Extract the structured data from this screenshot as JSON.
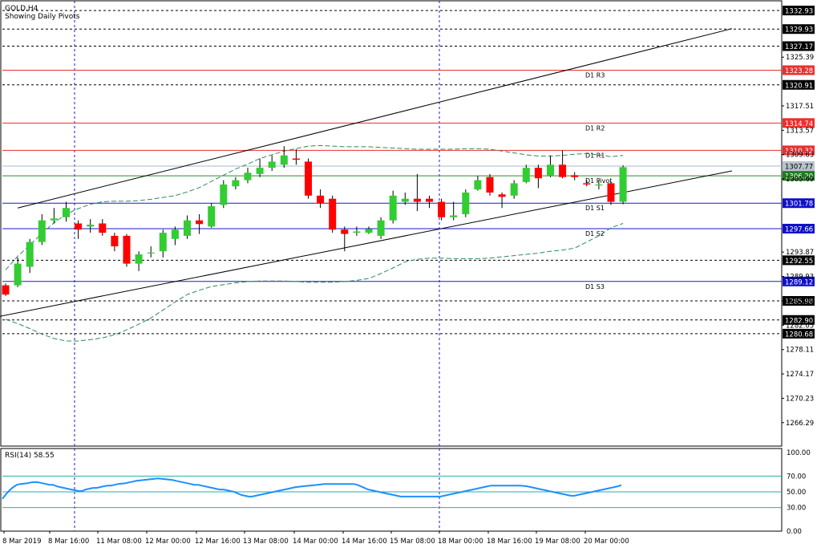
{
  "header": {
    "symbol": "GOLD,H4",
    "subtitle": "Showing Daily Pivots"
  },
  "rsi": {
    "label": "RSI(14) 58.55"
  },
  "colors": {
    "bull": "#32cd32",
    "bear": "#ff0000",
    "pivot_line": "#2e8b2e",
    "resistance": "#e8312f",
    "support": "#1a1acd",
    "rsi_line": "#1e90ff",
    "rsi_level": "#20b2aa",
    "trend": "#000000",
    "envelope": "#2e8b57"
  },
  "chart_data": [
    {
      "type": "candlestick",
      "title": "GOLD,H4",
      "subtitle": "Showing Daily Pivots",
      "ylim": [
        1262.5,
        1334.5
      ],
      "y_ticks": [
        1325.39,
        1317.51,
        1313.57,
        1309.63,
        1305.69,
        1293.87,
        1289.93,
        1285.99,
        1282.05,
        1278.11,
        1274.17,
        1270.23,
        1266.29
      ],
      "x_ticks": [
        "8 Mar 2019",
        "8 Mar 16:00",
        "11 Mar 08:00",
        "12 Mar 00:00",
        "12 Mar 16:00",
        "13 Mar 08:00",
        "14 Mar 00:00",
        "14 Mar 16:00",
        "15 Mar 08:00",
        "18 Mar 00:00",
        "18 Mar 16:00",
        "19 Mar 08:00",
        "20 Mar 00:00"
      ],
      "pivots": [
        {
          "name": "D1 R3",
          "value": 1323.28,
          "kind": "resistance"
        },
        {
          "name": "D1 R2",
          "value": 1314.74,
          "kind": "resistance"
        },
        {
          "name": "D1 R1",
          "value": 1310.32,
          "kind": "resistance"
        },
        {
          "name": "D1 Pivot",
          "value": 1306.2,
          "kind": "pivot"
        },
        {
          "name": "D1 S1",
          "value": 1301.78,
          "kind": "support"
        },
        {
          "name": "D1 S2",
          "value": 1297.66,
          "kind": "support"
        },
        {
          "name": "D1 S3",
          "value": 1289.12,
          "kind": "support"
        }
      ],
      "levels": [
        1332.93,
        1329.93,
        1327.17,
        1320.91,
        1292.55,
        1285.98,
        1282.9,
        1280.68
      ],
      "price_tags": [
        {
          "label": "1332.93",
          "value": 1332.93,
          "kind": "level"
        },
        {
          "label": "1329.93",
          "value": 1329.93,
          "kind": "level"
        },
        {
          "label": "1327.17",
          "value": 1327.17,
          "kind": "level"
        },
        {
          "label": "1323.28",
          "value": 1323.28,
          "kind": "resistance"
        },
        {
          "label": "1320.91",
          "value": 1320.91,
          "kind": "level"
        },
        {
          "label": "1314.74",
          "value": 1314.74,
          "kind": "resistance"
        },
        {
          "label": "1310.32",
          "value": 1310.32,
          "kind": "resistance"
        },
        {
          "label": "1307.77",
          "value": 1307.77,
          "kind": "current"
        },
        {
          "label": "1306.20",
          "value": 1306.2,
          "kind": "pivot"
        },
        {
          "label": "1301.78",
          "value": 1301.78,
          "kind": "support"
        },
        {
          "label": "1297.66",
          "value": 1297.66,
          "kind": "support"
        },
        {
          "label": "1292.55",
          "value": 1292.55,
          "kind": "level"
        },
        {
          "label": "1289.12",
          "value": 1289.12,
          "kind": "support"
        },
        {
          "label": "1285.98",
          "value": 1285.98,
          "kind": "level"
        },
        {
          "label": "1282.90",
          "value": 1282.9,
          "kind": "level"
        },
        {
          "label": "1280.68",
          "value": 1280.68,
          "kind": "level"
        }
      ],
      "trend_lines": [
        {
          "name": "upper channel",
          "points": [
            [
              1,
              1301.0
            ],
            [
              60,
              1330.0
            ]
          ]
        },
        {
          "name": "lower channel",
          "points": [
            [
              -3,
              1282.5
            ],
            [
              60,
              1307.0
            ]
          ]
        }
      ],
      "candles": [
        [
          1288.5,
          1287.0,
          1288.8,
          1286.8
        ],
        [
          1288.5,
          1292.0,
          1293.0,
          1288.2
        ],
        [
          1291.5,
          1295.5,
          1296.0,
          1290.5
        ],
        [
          1295.5,
          1299.0,
          1300.0,
          1295.0
        ],
        [
          1299.0,
          1299.3,
          1301.0,
          1298.5
        ],
        [
          1299.5,
          1301.0,
          1302.0,
          1298.8
        ],
        [
          1298.5,
          1297.5,
          1299.0,
          1296.0
        ],
        [
          1298.0,
          1298.3,
          1299.2,
          1297.0
        ],
        [
          1298.5,
          1297.0,
          1299.2,
          1296.5
        ],
        [
          1296.5,
          1294.8,
          1297.0,
          1294.0
        ],
        [
          1296.5,
          1292.0,
          1296.8,
          1291.5
        ],
        [
          1292.0,
          1293.5,
          1294.0,
          1290.8
        ],
        [
          1293.8,
          1293.8,
          1294.8,
          1293.0
        ],
        [
          1294.0,
          1297.0,
          1297.5,
          1293.0
        ],
        [
          1296.0,
          1297.5,
          1298.0,
          1295.0
        ],
        [
          1296.5,
          1299.0,
          1299.8,
          1296.0
        ],
        [
          1299.0,
          1298.4,
          1300.0,
          1296.8
        ],
        [
          1298.0,
          1301.3,
          1301.8,
          1297.8
        ],
        [
          1301.5,
          1304.8,
          1305.5,
          1301.0
        ],
        [
          1304.5,
          1305.5,
          1306.0,
          1304.0
        ],
        [
          1305.5,
          1306.7,
          1307.5,
          1305.0
        ],
        [
          1306.5,
          1307.5,
          1309.0,
          1306.0
        ],
        [
          1307.5,
          1308.5,
          1309.5,
          1307.0
        ],
        [
          1308.0,
          1309.5,
          1311.0,
          1307.5
        ],
        [
          1309.0,
          1308.8,
          1310.5,
          1308.0
        ],
        [
          1308.5,
          1303.0,
          1309.0,
          1302.5
        ],
        [
          1303.0,
          1301.8,
          1304.0,
          1301.0
        ],
        [
          1302.5,
          1297.5,
          1303.0,
          1297.0
        ],
        [
          1297.5,
          1296.8,
          1298.0,
          1294.0
        ],
        [
          1297.0,
          1297.2,
          1298.0,
          1296.5
        ],
        [
          1297.0,
          1297.6,
          1298.0,
          1296.8
        ],
        [
          1296.5,
          1299.0,
          1299.5,
          1296.0
        ],
        [
          1299.0,
          1303.0,
          1303.8,
          1298.5
        ],
        [
          1302.0,
          1302.5,
          1303.5,
          1301.5
        ],
        [
          1302.5,
          1302.0,
          1306.5,
          1300.5
        ],
        [
          1302.5,
          1302.0,
          1303.0,
          1301.0
        ],
        [
          1302.0,
          1299.5,
          1302.5,
          1299.0
        ],
        [
          1299.5,
          1299.8,
          1302.0,
          1299.0
        ],
        [
          1300.0,
          1303.5,
          1304.0,
          1299.5
        ],
        [
          1304.0,
          1305.5,
          1306.2,
          1303.8
        ],
        [
          1306.0,
          1303.5,
          1306.5,
          1303.0
        ],
        [
          1303.2,
          1302.8,
          1303.5,
          1301.0
        ],
        [
          1303.0,
          1305.0,
          1305.5,
          1302.5
        ],
        [
          1305.2,
          1307.5,
          1308.0,
          1305.0
        ],
        [
          1307.5,
          1305.8,
          1308.0,
          1304.2
        ],
        [
          1306.2,
          1308.0,
          1309.5,
          1306.0
        ],
        [
          1308.0,
          1306.0,
          1310.3,
          1305.8
        ],
        [
          1306.3,
          1306.0,
          1306.8,
          1305.5
        ],
        [
          1305.0,
          1304.8,
          1305.5,
          1304.5
        ],
        [
          1304.7,
          1304.8,
          1305.5,
          1304.0
        ],
        [
          1305.0,
          1302.0,
          1305.3,
          1301.5
        ],
        [
          1302.0,
          1307.6,
          1307.9,
          1301.6
        ]
      ],
      "envelope_upper": [
        1291.0,
        1293.2,
        1295.0,
        1296.9,
        1298.6,
        1300.0,
        1300.9,
        1301.6,
        1302.0,
        1302.1,
        1302.1,
        1302.2,
        1302.4,
        1302.7,
        1303.0,
        1303.6,
        1304.3,
        1305.3,
        1306.3,
        1307.3,
        1308.1,
        1309.0,
        1309.6,
        1310.2,
        1310.6,
        1311.0,
        1311.1,
        1311.0,
        1310.9,
        1310.9,
        1310.9,
        1310.8,
        1310.7,
        1310.6,
        1310.5,
        1310.5,
        1310.5,
        1310.5,
        1310.6,
        1310.6,
        1310.5,
        1310.2,
        1309.9,
        1309.6,
        1309.4,
        1309.4,
        1309.5,
        1309.7,
        1309.8,
        1309.6,
        1309.3,
        1309.5
      ],
      "envelope_lower": [
        1283.0,
        1282.3,
        1281.5,
        1280.6,
        1279.9,
        1279.5,
        1279.5,
        1279.7,
        1280.0,
        1280.5,
        1281.3,
        1282.2,
        1283.2,
        1284.5,
        1285.8,
        1287.0,
        1287.7,
        1288.3,
        1288.6,
        1288.9,
        1289.1,
        1289.2,
        1289.2,
        1289.2,
        1289.1,
        1289.0,
        1289.0,
        1289.0,
        1289.1,
        1289.3,
        1289.6,
        1290.4,
        1291.3,
        1292.3,
        1292.7,
        1292.9,
        1292.9,
        1292.8,
        1292.8,
        1292.8,
        1292.9,
        1293.1,
        1293.3,
        1293.5,
        1293.7,
        1294.0,
        1294.2,
        1294.5,
        1295.5,
        1296.5,
        1297.8,
        1298.5
      ],
      "sessions": [
        "8 Mar 16:00",
        "13 Mar 08:00",
        "18 Mar 00:00"
      ]
    },
    {
      "type": "line",
      "title": "RSI(14) 58.55",
      "ylim": [
        0,
        100
      ],
      "y_ticks": [
        100.0,
        70.0,
        50.0,
        30.0,
        0.0
      ],
      "levels": [
        70,
        50,
        30
      ],
      "series": [
        {
          "name": "RSI(14)",
          "values": [
            41,
            47,
            52,
            56,
            59,
            60,
            60.5,
            61,
            62,
            62.5,
            62,
            61,
            60,
            59,
            59,
            57,
            56,
            55,
            54,
            53,
            52,
            51,
            51,
            53,
            54,
            55,
            55,
            56,
            57,
            58,
            58,
            59,
            60,
            60.5,
            61,
            62,
            63,
            64,
            64.5,
            65,
            65.5,
            66,
            66.5,
            67,
            66.5,
            66,
            65.5,
            65,
            64,
            63,
            62,
            61,
            60,
            59,
            59,
            58,
            57,
            56,
            55,
            54,
            53,
            53,
            52,
            51,
            50,
            48,
            46,
            45,
            44,
            44,
            45,
            46,
            47,
            48,
            49,
            50,
            51,
            52,
            53,
            54,
            55,
            56,
            56.5,
            57,
            57.5,
            58,
            58.5,
            59,
            59.5,
            60,
            60,
            60,
            60,
            60,
            60,
            60,
            60,
            60,
            59,
            57,
            55,
            53,
            52,
            51,
            50,
            49,
            48,
            47,
            46,
            45,
            44,
            44,
            44,
            44,
            44,
            44,
            44,
            44,
            44,
            44,
            44,
            44,
            45,
            46,
            47,
            48,
            49,
            50,
            51,
            52,
            53,
            54,
            55,
            56,
            57,
            58,
            58,
            58,
            58,
            58,
            58,
            58,
            58,
            58,
            57.5,
            57,
            56,
            55,
            54,
            53,
            52,
            51,
            50,
            49,
            48,
            47,
            46,
            45,
            45,
            46,
            47,
            48,
            49,
            50,
            51,
            52,
            53,
            54,
            55,
            56,
            57,
            58.5
          ]
        }
      ]
    }
  ]
}
